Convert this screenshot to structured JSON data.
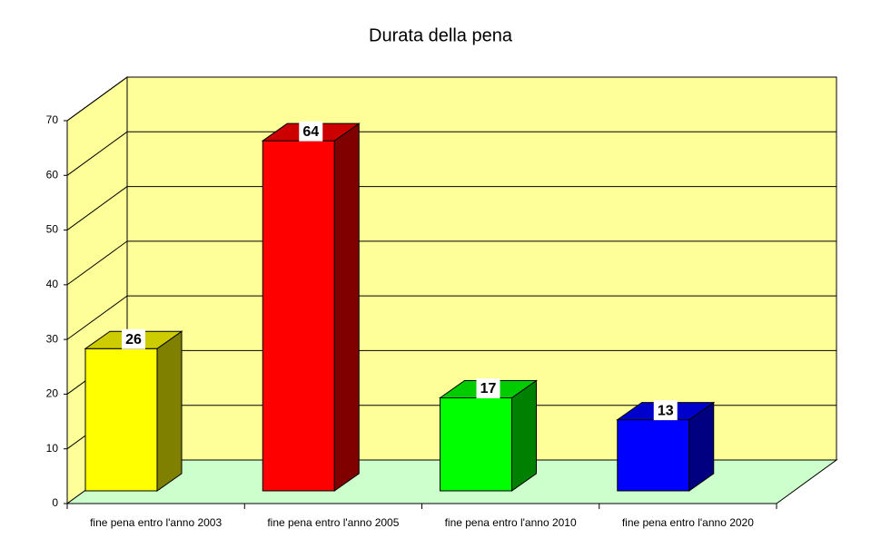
{
  "chart_data": {
    "type": "bar",
    "title": "Durata della pena",
    "categories": [
      "fine pena entro l'anno 2003",
      "fine pena entro l'anno 2005",
      "fine pena entro l'anno 2010",
      "fine pena entro l'anno 2020"
    ],
    "values": [
      26,
      64,
      17,
      13
    ],
    "colors": [
      "#ffff00",
      "#ff0000",
      "#00ff00",
      "#0000ff"
    ],
    "ylim": [
      0,
      70
    ],
    "yticks": [
      0,
      10,
      20,
      30,
      40,
      50,
      60,
      70
    ],
    "grid": true
  }
}
